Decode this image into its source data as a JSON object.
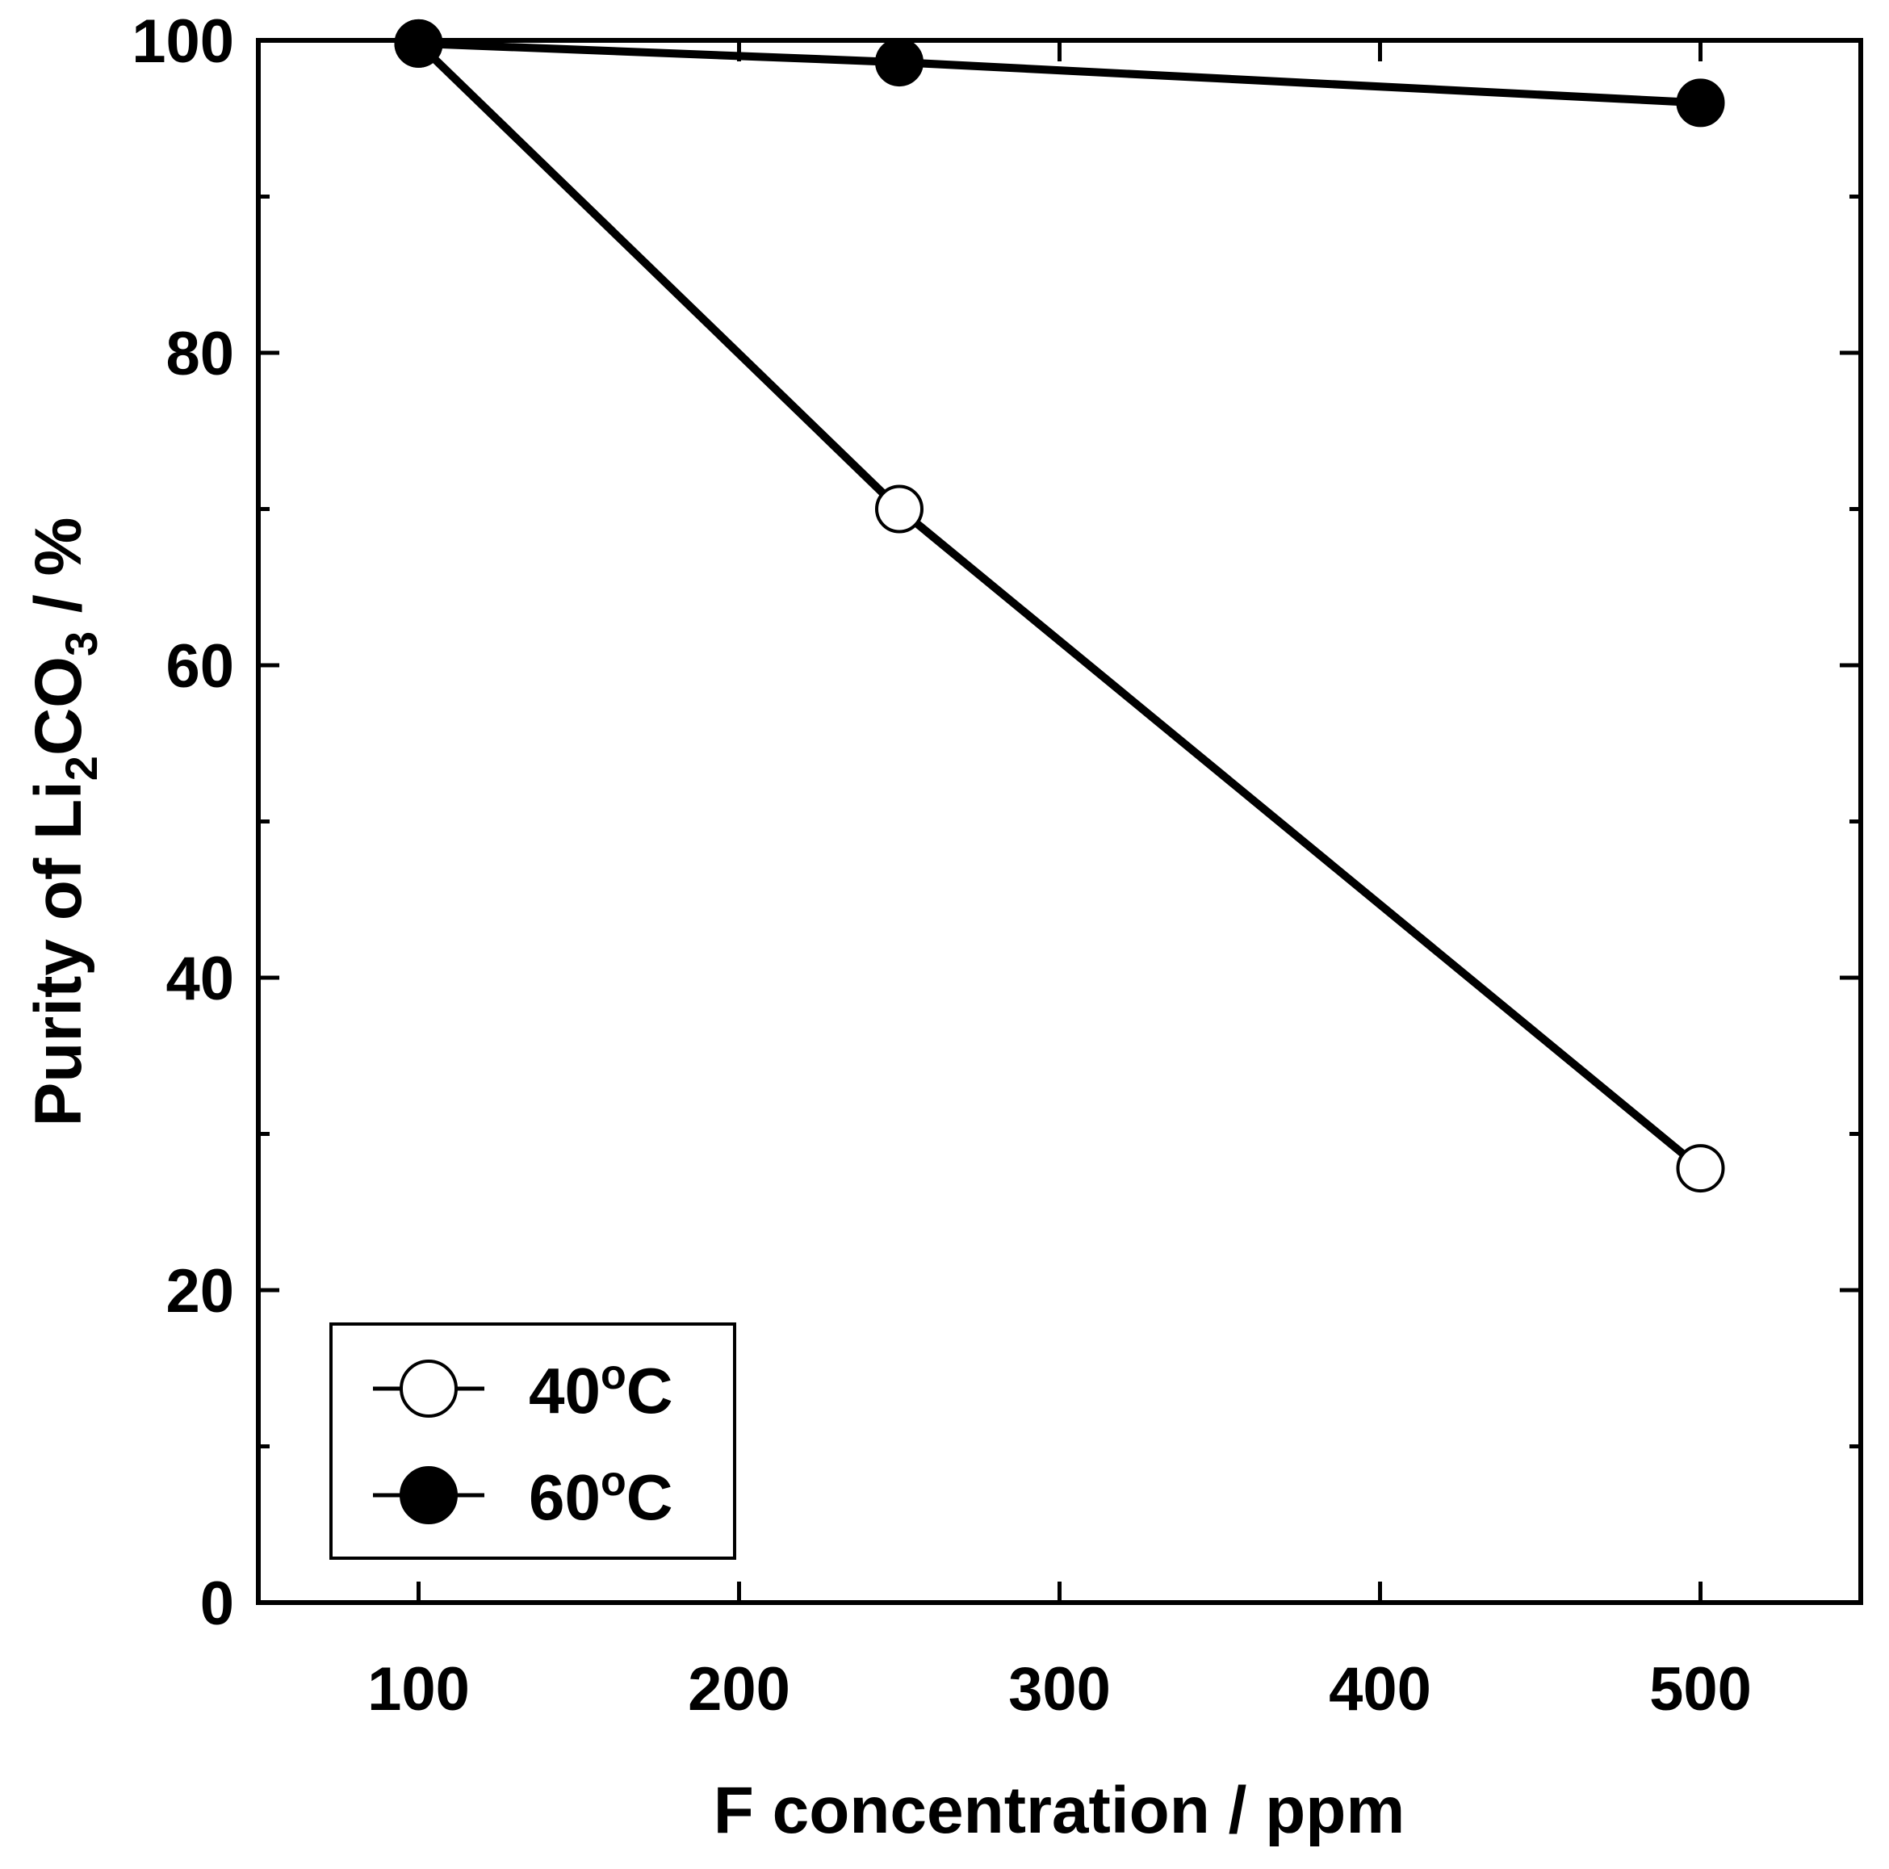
{
  "chart_data": {
    "type": "line",
    "xlabel": "F concentration / ppm",
    "ylabel_parts": [
      "Purity of Li",
      "2",
      "CO",
      "3",
      " / %"
    ],
    "xlim": [
      50,
      550
    ],
    "ylim": [
      0,
      100
    ],
    "x_ticks": [
      100,
      200,
      300,
      400,
      500
    ],
    "x_minor_ticks": [],
    "y_ticks": [
      0,
      20,
      40,
      60,
      80,
      100
    ],
    "y_minor_ticks": [
      10,
      30,
      50,
      70,
      90
    ],
    "legend_position": "bottom-left",
    "series": [
      {
        "name": "40°C",
        "label_parts": [
          "40",
          "o",
          "C"
        ],
        "marker": "open-circle",
        "x": [
          100,
          250,
          500
        ],
        "y": [
          99.8,
          70.0,
          27.8
        ]
      },
      {
        "name": "60°C",
        "label_parts": [
          "60",
          "o",
          "C"
        ],
        "marker": "filled-circle",
        "x": [
          100,
          250,
          500
        ],
        "y": [
          99.8,
          98.6,
          96.0
        ]
      }
    ]
  }
}
